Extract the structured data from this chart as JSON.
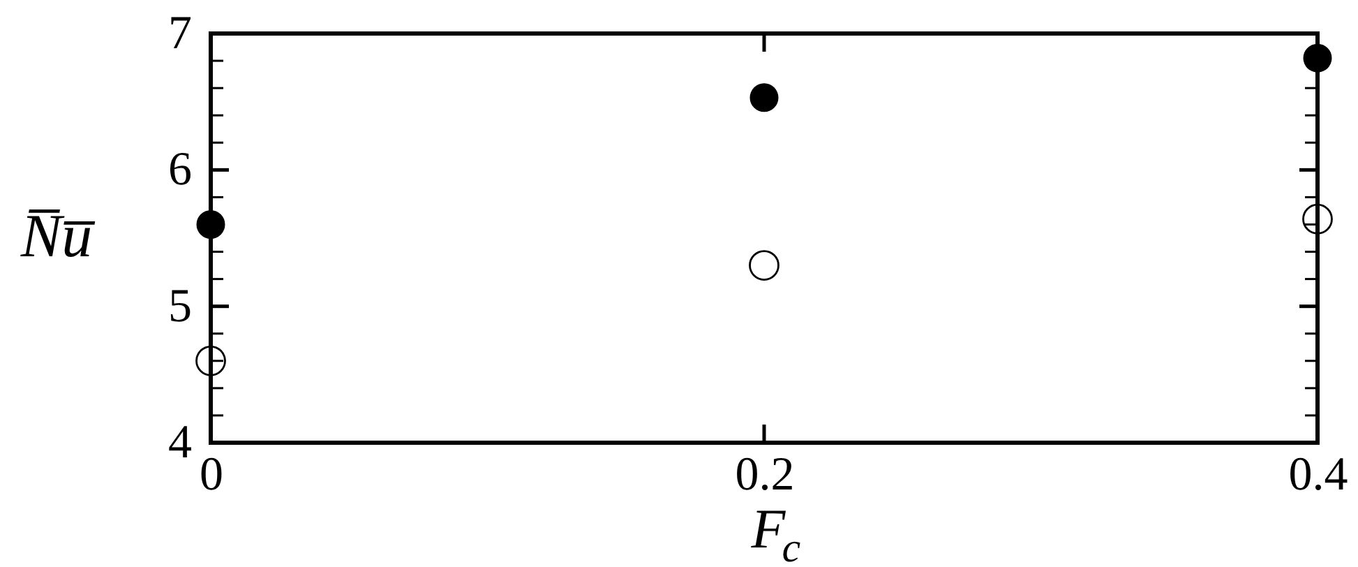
{
  "chart_data": {
    "type": "scatter",
    "xlabel": "F$_{c}$",
    "ylabel": "N̅u̅",
    "x": [
      0,
      0.2,
      0.4
    ],
    "series": [
      {
        "color": "#000000",
        "values": [
          5.6,
          6.53,
          6.82
        ]
      },
      {
        "color": "#000000",
        "values": [
          4.6,
          5.3,
          5.64
        ]
      }
    ],
    "xlim": [
      0,
      0.4
    ],
    "ylim": [
      4,
      7
    ],
    "xticks": [
      0,
      0.2,
      0.4
    ],
    "yticks": [
      4,
      {
        "value": 4.2,
        "label": null
      },
      {
        "value": 4.4,
        "label": null
      },
      {
        "value": 4.6,
        "label": null
      },
      {
        "value": 4.8,
        "label": null
      },
      5,
      {
        "value": 5.2,
        "label": null
      },
      {
        "value": 5.4,
        "label": null
      },
      {
        "value": 5.6,
        "label": null
      },
      {
        "value": 5.8,
        "label": null
      },
      6,
      {
        "value": 6.2,
        "label": null
      },
      {
        "value": 6.4,
        "label": null
      },
      {
        "value": 6.6,
        "label": null
      },
      {
        "value": 6.8,
        "label": null
      },
      7
    ],
    "grid": false,
    "marker": "circle"
  }
}
